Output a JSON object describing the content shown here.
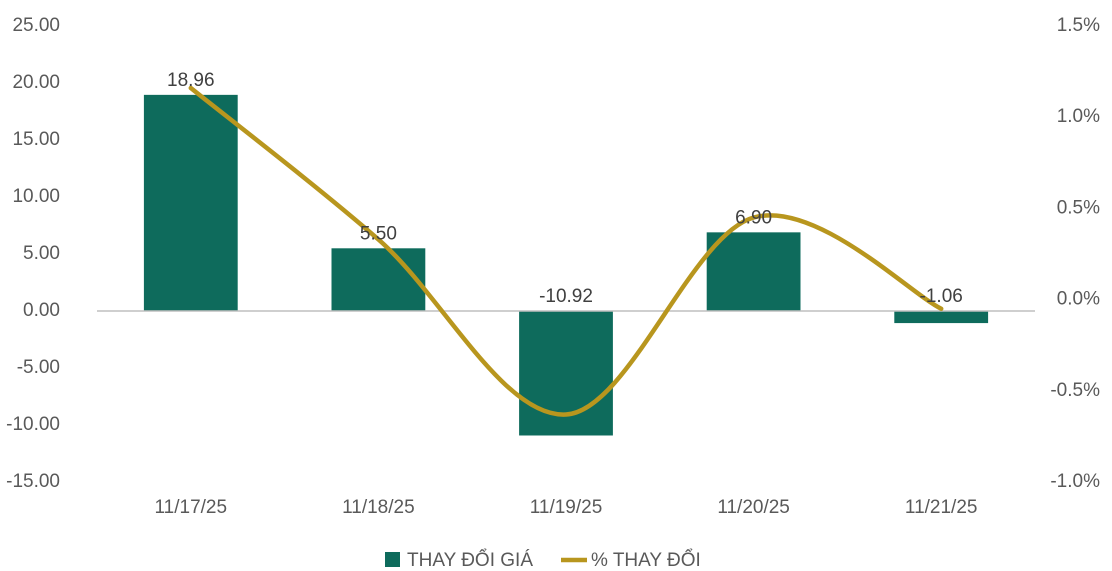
{
  "chart_data": {
    "type": "bar_line",
    "categories": [
      "11/17/25",
      "11/18/25",
      "11/19/25",
      "11/20/25",
      "11/21/25"
    ],
    "series": [
      {
        "name": "THAY ĐỔI GIÁ",
        "color": "#0e6b5c",
        "type": "bar",
        "axis": "y",
        "values": [
          18.96,
          5.5,
          -10.92,
          6.9,
          -1.06
        ],
        "value_labels": [
          "18.96",
          "5.50",
          "-10.92",
          "6.90",
          "-1.06"
        ]
      },
      {
        "name": "% THAY ĐỔI",
        "color": "#b8961e",
        "type": "line",
        "axis": "y2",
        "values": [
          1.16,
          0.33,
          -0.63,
          0.45,
          -0.05
        ]
      }
    ],
    "ylim": [
      -15,
      25
    ],
    "yticks": [
      {
        "value": 25,
        "label": "25.00"
      },
      {
        "value": 20,
        "label": "20.00"
      },
      {
        "value": 15,
        "label": "15.00"
      },
      {
        "value": 10,
        "label": "10.00"
      },
      {
        "value": 5,
        "label": "5.00"
      },
      {
        "value": 0,
        "label": "0.00"
      },
      {
        "value": -5,
        "label": "-5.00"
      },
      {
        "value": -10,
        "label": "-10.00"
      },
      {
        "value": -15,
        "label": "-15.00"
      }
    ],
    "y2lim": [
      -1.0,
      1.5
    ],
    "y2ticks": [
      {
        "value": 1.5,
        "label": "1.5%"
      },
      {
        "value": 1.0,
        "label": "1.0%"
      },
      {
        "value": 0.5,
        "label": "0.5%"
      },
      {
        "value": 0.0,
        "label": "0.0%"
      },
      {
        "value": -0.5,
        "label": "-0.5%"
      },
      {
        "value": -1.0,
        "label": "-1.0%"
      }
    ],
    "legend": "bottom"
  }
}
